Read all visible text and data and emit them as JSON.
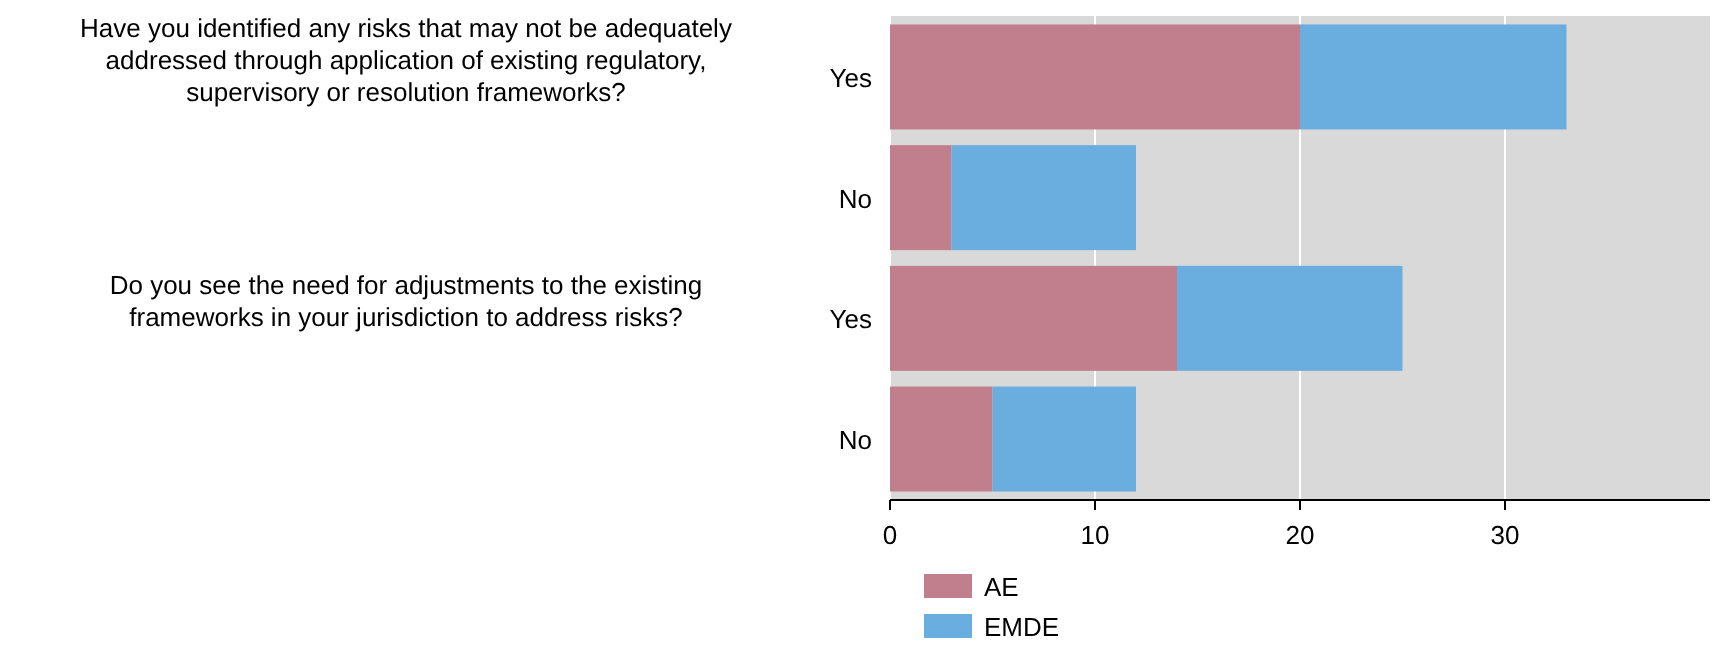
{
  "chart_data": {
    "type": "bar",
    "orientation": "horizontal",
    "stacked": true,
    "categories": [
      "Yes",
      "No",
      "Yes",
      "No"
    ],
    "series": [
      {
        "name": "AE",
        "color": "#c17f8d",
        "values": [
          20,
          3,
          14,
          5
        ]
      },
      {
        "name": "EMDE",
        "color": "#6aaee0",
        "values": [
          13,
          9,
          11,
          7
        ]
      }
    ],
    "xlim": [
      0,
      40
    ],
    "xticks": [
      0,
      10,
      20,
      30
    ],
    "grid": "x",
    "legend": "bottom",
    "annotations": [
      "Have you identified any risks that may not be adequately addressed through application of existing regulatory, supervisory or resolution frameworks?",
      "Do you see the need for adjustments to the existing frameworks in your jurisdiction to address risks?"
    ]
  }
}
